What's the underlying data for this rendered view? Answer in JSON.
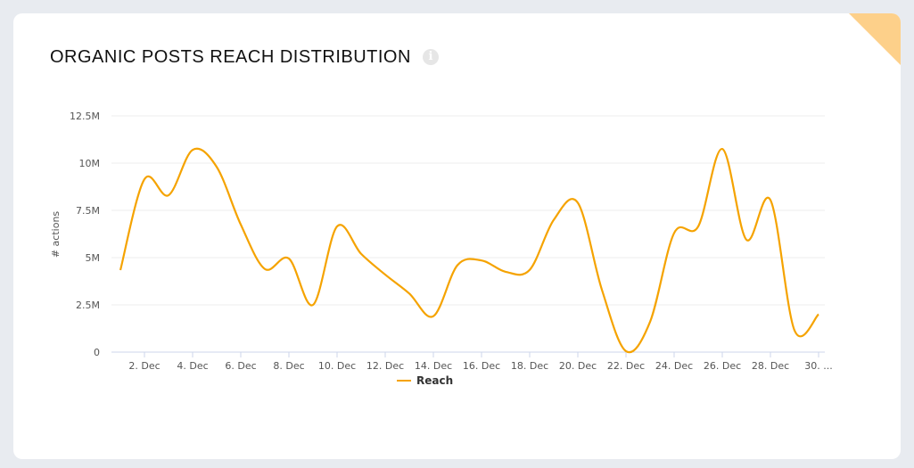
{
  "title": "ORGANIC POSTS REACH DISTRIBUTION",
  "info_icon": "info-icon",
  "corner_icon": "search-icon",
  "colors": {
    "series": "#f5a300",
    "corner": "#fdd08a",
    "grid": "#eeeeee"
  },
  "chart_data": {
    "type": "line",
    "smooth": true,
    "title": "",
    "xlabel": "",
    "ylabel": "# actions",
    "ylim": [
      0,
      12500000
    ],
    "yticks": [
      0,
      2500000,
      5000000,
      7500000,
      10000000,
      12500000
    ],
    "ytick_labels": [
      "0",
      "2.5M",
      "5M",
      "7.5M",
      "10M",
      "12.5M"
    ],
    "xtick_labels": [
      "2. Dec",
      "4. Dec",
      "6. Dec",
      "8. Dec",
      "10. Dec",
      "12. Dec",
      "14. Dec",
      "16. Dec",
      "18. Dec",
      "20. Dec",
      "22. Dec",
      "24. Dec",
      "26. Dec",
      "28. Dec",
      "30. ..."
    ],
    "x": [
      "1 Dec",
      "2 Dec",
      "3 Dec",
      "4 Dec",
      "5 Dec",
      "6 Dec",
      "7 Dec",
      "8 Dec",
      "9 Dec",
      "10 Dec",
      "11 Dec",
      "12 Dec",
      "13 Dec",
      "14 Dec",
      "15 Dec",
      "16 Dec",
      "17 Dec",
      "18 Dec",
      "19 Dec",
      "20 Dec",
      "21 Dec",
      "22 Dec",
      "23 Dec",
      "24 Dec",
      "25 Dec",
      "26 Dec",
      "27 Dec",
      "28 Dec",
      "29 Dec",
      "30 Dec"
    ],
    "grid": true,
    "legend_position": "bottom",
    "series": [
      {
        "name": "Reach",
        "values": [
          4340000,
          9150000,
          8300000,
          10700000,
          9800000,
          6750000,
          4400000,
          4950000,
          2500000,
          6650000,
          5200000,
          4100000,
          3100000,
          1900000,
          4600000,
          4850000,
          4250000,
          4350000,
          7000000,
          7900000,
          3300000,
          50000,
          1600000,
          6300000,
          6650000,
          10750000,
          5950000,
          8050000,
          1150000,
          2000000
        ]
      }
    ]
  }
}
